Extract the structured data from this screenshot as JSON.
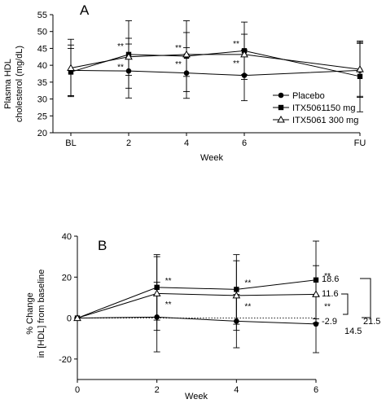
{
  "chart_data": [
    {
      "panel": "A",
      "type": "line",
      "ylabel_lines": [
        "Plasma HDL",
        "cholesterol (mg/dL)"
      ],
      "xlabel": "Week",
      "ylim": [
        20,
        55
      ],
      "yticks": [
        20,
        25,
        30,
        35,
        40,
        45,
        50,
        55
      ],
      "categories": [
        "BL",
        "2",
        "4",
        "6",
        "FU"
      ],
      "x": [
        0,
        2,
        4,
        6,
        10
      ],
      "legend": {
        "placement": "right",
        "entries": [
          "Placebo",
          "ITX5061150 mg",
          "ITX5061 300 mg"
        ]
      },
      "series": [
        {
          "name": "Placebo",
          "marker": "circle",
          "values": [
            38.5,
            38.3,
            37.7,
            37.0,
            38.5
          ],
          "err": [
            7.5,
            8.0,
            7.5,
            7.5,
            8.0
          ]
        },
        {
          "name": "ITX5061150 mg",
          "marker": "square",
          "values": [
            38.0,
            43.2,
            42.7,
            44.3,
            36.7
          ],
          "err": [
            7.0,
            10.0,
            10.5,
            8.5,
            10.5
          ]
        },
        {
          "name": "ITX5061 300 mg",
          "marker": "triangle-open",
          "values": [
            39.2,
            42.5,
            43.2,
            43.2,
            38.8
          ],
          "err": [
            8.5,
            5.5,
            6.5,
            6.0,
            8.0
          ]
        }
      ],
      "annotations": [
        {
          "text": "**",
          "x": 2,
          "y": 45.8
        },
        {
          "text": "**",
          "x": 2,
          "y": 39.7
        },
        {
          "text": "**",
          "x": 4,
          "y": 45.3
        },
        {
          "text": "**",
          "x": 4,
          "y": 40.5
        },
        {
          "text": "**",
          "x": 6,
          "y": 46.5
        },
        {
          "text": "**",
          "x": 6,
          "y": 40.8
        }
      ]
    },
    {
      "panel": "B",
      "type": "line",
      "ylabel_lines": [
        "% Change",
        "in [HDL] from baseline"
      ],
      "xlabel": "Week",
      "ylim": [
        -30,
        40
      ],
      "yticks": [
        -20,
        0,
        20,
        40
      ],
      "categories": [
        "0",
        "2",
        "4",
        "6"
      ],
      "x": [
        0,
        2,
        4,
        6
      ],
      "series": [
        {
          "name": "Placebo",
          "marker": "circle",
          "values": [
            0,
            0.5,
            -1.5,
            -2.9
          ],
          "err": [
            0,
            17,
            13,
            14
          ]
        },
        {
          "name": "ITX5061150 mg",
          "marker": "square",
          "values": [
            0,
            15,
            14,
            18.6
          ],
          "err": [
            0,
            16,
            17,
            19
          ]
        },
        {
          "name": "ITX5061 300 mg",
          "marker": "triangle-open",
          "values": [
            0,
            12,
            11,
            11.6
          ],
          "err": [
            0,
            18,
            17,
            14
          ]
        }
      ],
      "dotted_reference": {
        "from": [
          0,
          0
        ],
        "to": [
          6,
          0
        ]
      },
      "annotations": [
        {
          "text": "**",
          "x": 2,
          "y": 18.5
        },
        {
          "text": "**",
          "x": 2,
          "y": 7.0
        },
        {
          "text": "**",
          "x": 4,
          "y": 17.5
        },
        {
          "text": "**",
          "x": 4,
          "y": 6.0
        },
        {
          "text": "**",
          "x": 6,
          "y": 21.0
        },
        {
          "text": "**",
          "x": 6,
          "y": 6.0
        }
      ],
      "end_labels": [
        "18.6",
        "11.6",
        "-2.9"
      ],
      "bracket_labels": [
        "14.5",
        "21.5"
      ]
    }
  ]
}
